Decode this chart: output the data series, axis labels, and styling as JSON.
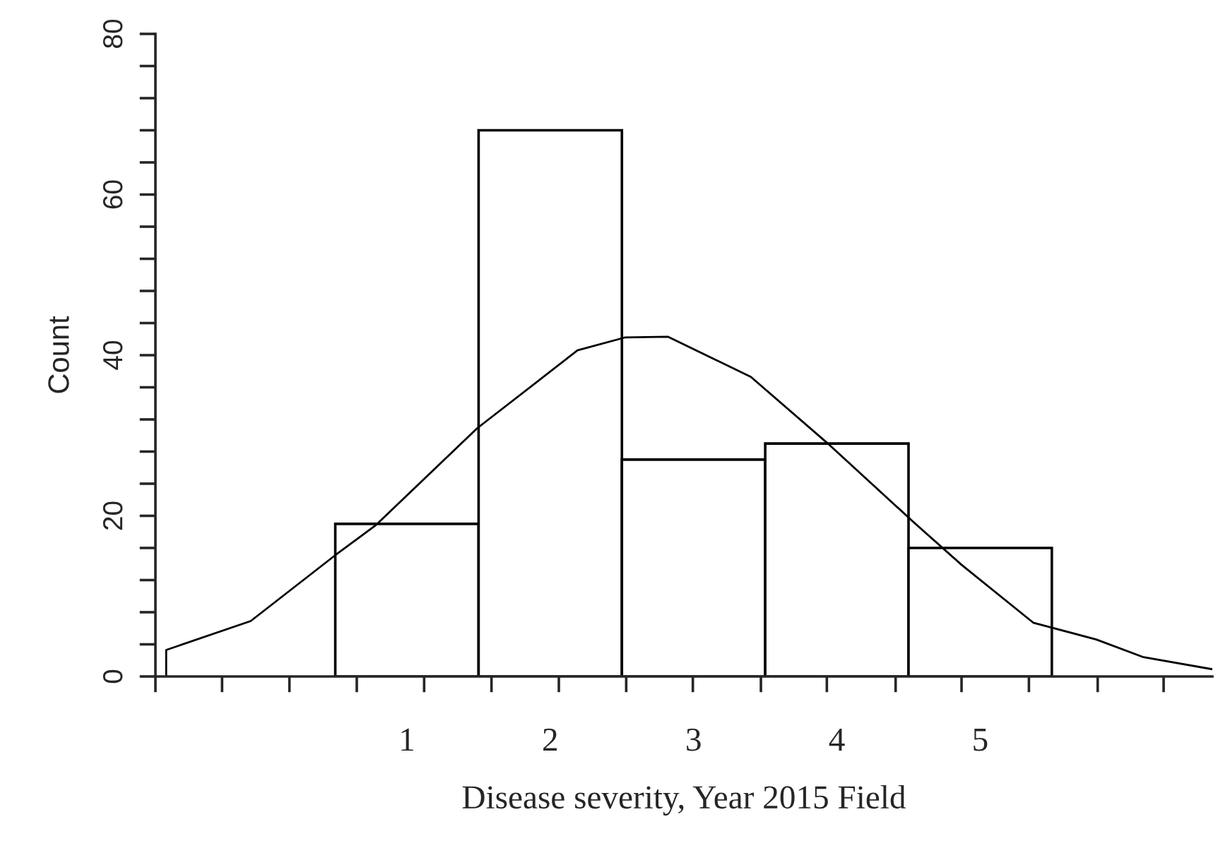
{
  "chart_data": {
    "type": "histogram",
    "xlabel": "Disease severity, Year 2015 Field",
    "ylabel": "Count",
    "bins": [
      0.5,
      1.5,
      2.5,
      3.5,
      4.5,
      5.5
    ],
    "series": [
      {
        "color": "#ffffff",
        "values": [
          19,
          68,
          27,
          29,
          16
        ]
      },
      {
        "type": "line",
        "color": "#000000",
        "x": [
          -0.68,
          -0.68,
          -0.09,
          0.5,
          0.78,
          1.49,
          2.19,
          2.52,
          2.82,
          3.4,
          3.95,
          4.53,
          4.87,
          5.37,
          5.81,
          6.14,
          6.62
        ],
        "values": [
          0,
          3.3,
          6.9,
          15.1,
          18.8,
          30.9,
          40.6,
          42.2,
          42.3,
          37.3,
          28.8,
          19.3,
          13.9,
          6.7,
          4.6,
          2.4,
          0.9
        ]
      }
    ],
    "xlim": [
      -0.755,
      6.62
    ],
    "xticks": [
      {
        "value": -0.755,
        "label": null
      },
      {
        "value": -0.29,
        "label": null
      },
      {
        "value": 0.18,
        "label": null
      },
      {
        "value": 0.65,
        "label": null
      },
      {
        "value": 1.12,
        "label": null
      },
      {
        "value": 1.59,
        "label": null
      },
      {
        "value": 2.06,
        "label": null
      },
      {
        "value": 2.53,
        "label": null
      },
      {
        "value": 2.995,
        "label": null
      },
      {
        "value": 3.47,
        "label": null
      },
      {
        "value": 3.93,
        "label": null
      },
      {
        "value": 4.41,
        "label": null
      },
      {
        "value": 4.87,
        "label": null
      },
      {
        "value": 5.34,
        "label": null
      },
      {
        "value": 5.82,
        "label": null
      },
      {
        "value": 6.28,
        "label": null
      },
      1,
      2,
      3,
      4,
      5
    ],
    "ylim": [
      0,
      80
    ],
    "yticks": [
      0,
      {
        "value": 4,
        "label": null
      },
      {
        "value": 8,
        "label": null
      },
      {
        "value": 12,
        "label": null
      },
      {
        "value": 16,
        "label": null
      },
      20,
      {
        "value": 24,
        "label": null
      },
      {
        "value": 28,
        "label": null
      },
      {
        "value": 32,
        "label": null
      },
      {
        "value": 36,
        "label": null
      },
      40,
      {
        "value": 44,
        "label": null
      },
      {
        "value": 48,
        "label": null
      },
      {
        "value": 52,
        "label": null
      },
      {
        "value": 56,
        "label": null
      },
      60,
      {
        "value": 64,
        "label": null
      },
      {
        "value": 68,
        "label": null
      },
      {
        "value": 72,
        "label": null
      },
      {
        "value": 76,
        "label": null
      },
      80
    ],
    "grid": false,
    "legend": false
  }
}
